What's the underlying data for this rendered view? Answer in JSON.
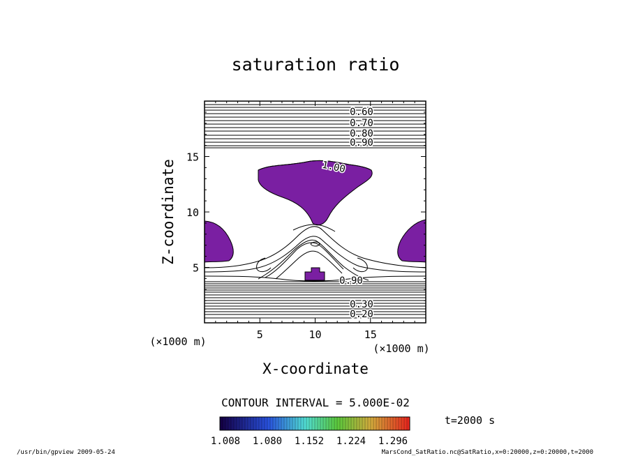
{
  "chart_data": {
    "type": "contour",
    "title": "saturation ratio",
    "xlabel": "X-coordinate",
    "ylabel": "Z-coordinate",
    "x_unit": "(×1000 m)",
    "z_unit": "(×1000 m)",
    "xlim": [
      0,
      20
    ],
    "ylim": [
      0,
      20
    ],
    "x_ticks": [
      5,
      10,
      15
    ],
    "y_ticks": [
      5,
      10,
      15
    ],
    "contour_interval_text": "CONTOUR INTERVAL = 5.000E-02",
    "contour_labels_upper": [
      "0.60",
      "0.70",
      "0.80",
      "0.90"
    ],
    "contour_labels_lower": [
      "0.90",
      "0.30",
      "0.20"
    ],
    "contour_label_center": "1.00",
    "shaded_threshold": 1.0,
    "colorbar_labels": [
      "1.008",
      "1.080",
      "1.152",
      "1.224",
      "1.296"
    ],
    "time_label": "t=2000 s",
    "shade_color": "#7a1fa2",
    "footer_left": "/usr/bin/gpview   2009-05-24",
    "footer_right": "MarsCond_SatRatio.nc@SatRatio,x=0:20000,z=0:20000,t=2000"
  }
}
